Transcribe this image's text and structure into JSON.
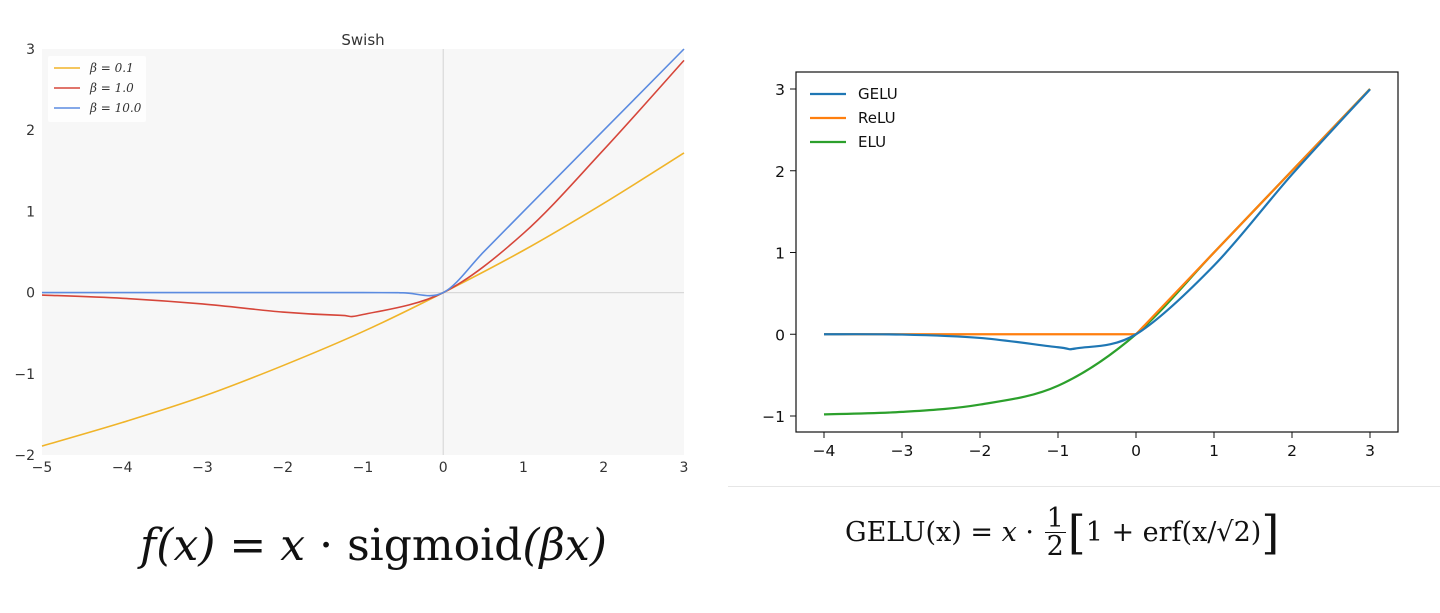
{
  "chart_data": [
    {
      "type": "line",
      "title": "Swish",
      "xlabel": "",
      "ylabel": "",
      "xlim": [
        -5,
        3
      ],
      "ylim": [
        -2,
        3
      ],
      "xticks": [
        "−5",
        "−4",
        "−3",
        "−2",
        "−1",
        "0",
        "1",
        "2",
        "3"
      ],
      "yticks": [
        "3",
        "2",
        "1",
        "0",
        "−1",
        "−2"
      ],
      "grid": false,
      "background": "#f7f7f7",
      "legend_position": "top-left",
      "function": "x * sigmoid(beta * x)",
      "series": [
        {
          "name": "β = 0.1",
          "beta": 0.1,
          "color": "#f0b429",
          "x": [
            -5,
            -4,
            -3,
            -2,
            -1,
            0,
            1,
            2,
            3
          ],
          "y": [
            -1.89,
            -1.6,
            -1.28,
            -0.9,
            -0.48,
            0,
            0.52,
            1.1,
            1.72
          ]
        },
        {
          "name": "β = 1.0",
          "beta": 1.0,
          "color": "#d6463a",
          "x": [
            -5,
            -4,
            -3,
            -2,
            -1.28,
            -1,
            0,
            1,
            2,
            3
          ],
          "y": [
            -0.03,
            -0.07,
            -0.14,
            -0.24,
            -0.28,
            -0.27,
            0,
            0.73,
            1.76,
            2.86
          ]
        },
        {
          "name": "β = 10.0",
          "beta": 10.0,
          "color": "#5b8be0",
          "x": [
            -5,
            -1,
            -0.5,
            0,
            0.5,
            1,
            2,
            3
          ],
          "y": [
            0,
            0,
            -0.003,
            0,
            0.497,
            1.0,
            2.0,
            3.0
          ]
        }
      ]
    },
    {
      "type": "line",
      "title": "",
      "xlabel": "",
      "ylabel": "",
      "xlim": [
        -4,
        3
      ],
      "ylim": [
        -1,
        3
      ],
      "xticks": [
        "−4",
        "−3",
        "−2",
        "−1",
        "0",
        "1",
        "2",
        "3"
      ],
      "yticks": [
        "3",
        "2",
        "1",
        "0",
        "−1"
      ],
      "grid": false,
      "legend_position": "top-left",
      "series": [
        {
          "name": "GELU",
          "color": "#1f77b4",
          "x": [
            -4,
            -3,
            -2,
            -1,
            -0.75,
            0,
            1,
            2,
            3
          ],
          "y": [
            0,
            -0.004,
            -0.045,
            -0.159,
            -0.17,
            0,
            0.841,
            1.955,
            2.996
          ]
        },
        {
          "name": "ReLU",
          "color": "#ff7f0e",
          "x": [
            -4,
            0,
            1,
            2,
            3
          ],
          "y": [
            0,
            0,
            1,
            2,
            3
          ]
        },
        {
          "name": "ELU",
          "color": "#2ca02c",
          "x": [
            -4,
            -3,
            -2,
            -1,
            0,
            1,
            2,
            3
          ],
          "y": [
            -0.98,
            -0.95,
            -0.86,
            -0.63,
            0,
            1,
            2,
            3
          ]
        }
      ]
    }
  ],
  "formulas": {
    "swish": {
      "lhs": "f(x)",
      "eq": " = ",
      "var": "x",
      "dot": " · ",
      "fn": "sigmoid",
      "arg": "(βx)"
    },
    "gelu": {
      "lhs": "GELU(x)",
      "eq": " = ",
      "var": "x",
      "dot": " · ",
      "num": "1",
      "den": "2",
      "lb": "[",
      "inner": "1 + erf(x/√2)",
      "rb": "]"
    }
  }
}
